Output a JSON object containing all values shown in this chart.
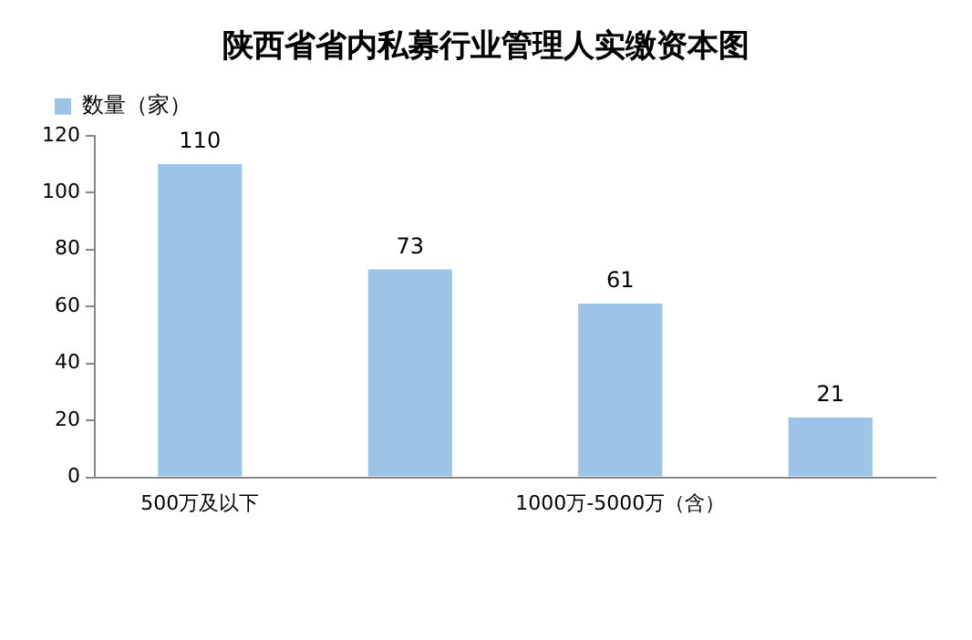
{
  "chart_data": {
    "type": "bar",
    "title": "陕西省省内私募行业管理人实缴资本图",
    "categories": [
      "500万及以下",
      null,
      "1000万-5000万（含）",
      null
    ],
    "series": [
      {
        "name": "数量（家）",
        "color": "#9dc3e6",
        "values": [
          110,
          73,
          61,
          21
        ]
      }
    ],
    "ylim": [
      0,
      120
    ],
    "yticks": [
      0,
      20,
      40,
      60,
      80,
      100,
      120
    ],
    "grid": false,
    "legend": "top left",
    "data_labels": true
  }
}
